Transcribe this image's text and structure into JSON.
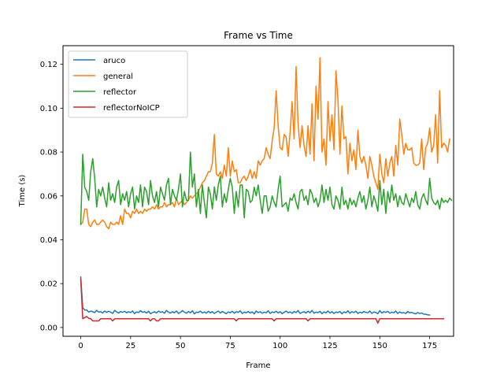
{
  "chart_data": {
    "type": "line",
    "title": "Frame vs Time",
    "xlabel": "Frame",
    "ylabel": "Time (s)",
    "xlim": [
      -8.9,
      187
    ],
    "ylim": [
      -0.004,
      0.1285
    ],
    "xticks": [
      0,
      25,
      50,
      75,
      100,
      125,
      150,
      175
    ],
    "yticks": [
      0.0,
      0.02,
      0.04,
      0.06,
      0.08,
      0.1,
      0.12
    ],
    "ytick_labels": [
      "0.00",
      "0.02",
      "0.04",
      "0.06",
      "0.08",
      "0.10",
      "0.12"
    ],
    "grid": false,
    "legend_position": "top-left",
    "series": [
      {
        "name": "aruco",
        "color": "#1f77b4",
        "x_start": 0,
        "values": [
          0.023,
          0.009,
          0.008,
          0.008,
          0.007,
          0.0075,
          0.0072,
          0.0068,
          0.0078,
          0.007,
          0.0072,
          0.0066,
          0.0075,
          0.0069,
          0.0074,
          0.007,
          0.0064,
          0.0078,
          0.0071,
          0.0066,
          0.0073,
          0.0069,
          0.0074,
          0.0067,
          0.0072,
          0.0068,
          0.0075,
          0.0063,
          0.0071,
          0.0068,
          0.0077,
          0.0069,
          0.0072,
          0.0066,
          0.0074,
          0.0063,
          0.0068,
          0.0072,
          0.0066,
          0.0075,
          0.0069,
          0.0072,
          0.0065,
          0.0078,
          0.007,
          0.0066,
          0.0072,
          0.0067,
          0.0075,
          0.0064,
          0.0069,
          0.0077,
          0.007,
          0.0065,
          0.0073,
          0.0067,
          0.0076,
          0.0062,
          0.007,
          0.0068,
          0.0075,
          0.0066,
          0.0071,
          0.0065,
          0.0074,
          0.0067,
          0.0072,
          0.0064,
          0.007,
          0.0075,
          0.0066,
          0.0073,
          0.0068,
          0.0063,
          0.0071,
          0.0067,
          0.0074,
          0.0065,
          0.0072,
          0.0069,
          0.0076,
          0.0064,
          0.007,
          0.0067,
          0.0073,
          0.0066,
          0.0071,
          0.0062,
          0.0075,
          0.0068,
          0.0072,
          0.0065,
          0.007,
          0.0067,
          0.0076,
          0.0064,
          0.0071,
          0.0068,
          0.0074,
          0.0066,
          0.0072,
          0.0063,
          0.0069,
          0.0075,
          0.0067,
          0.0071,
          0.0065,
          0.0073,
          0.0068,
          0.0077,
          0.0064,
          0.0069,
          0.0072,
          0.0066,
          0.0074,
          0.0067,
          0.0078,
          0.0065,
          0.007,
          0.0068,
          0.0074,
          0.0063,
          0.0071,
          0.0067,
          0.0075,
          0.0066,
          0.0072,
          0.0064,
          0.007,
          0.0068,
          0.0073,
          0.0062,
          0.0071,
          0.0067,
          0.0076,
          0.0065,
          0.0072,
          0.0068,
          0.0074,
          0.0064,
          0.007,
          0.0066,
          0.0073,
          0.0069,
          0.0067,
          0.0075,
          0.0064,
          0.0071,
          0.0068,
          0.0063,
          0.0077,
          0.0066,
          0.0072,
          0.0069,
          0.0074,
          0.0065,
          0.007,
          0.0067,
          0.0075,
          0.0064,
          0.0071,
          0.0066,
          0.0068,
          0.0064,
          0.0073,
          0.0067,
          0.0069,
          0.0065,
          0.0062,
          0.0068,
          0.0064,
          0.0066,
          0.0061,
          0.006,
          0.0058,
          0.0057
        ]
      },
      {
        "name": "general",
        "color": "#ff7f0e",
        "x_start": 0,
        "values": [
          0.047,
          0.048,
          0.054,
          0.054,
          0.047,
          0.046,
          0.048,
          0.049,
          0.047,
          0.047,
          0.048,
          0.049,
          0.048,
          0.046,
          0.045,
          0.048,
          0.047,
          0.047,
          0.048,
          0.047,
          0.051,
          0.047,
          0.054,
          0.052,
          0.052,
          0.05,
          0.053,
          0.052,
          0.054,
          0.052,
          0.053,
          0.052,
          0.054,
          0.053,
          0.054,
          0.054,
          0.055,
          0.054,
          0.056,
          0.054,
          0.055,
          0.055,
          0.057,
          0.055,
          0.056,
          0.056,
          0.057,
          0.055,
          0.059,
          0.056,
          0.057,
          0.058,
          0.056,
          0.057,
          0.058,
          0.06,
          0.059,
          0.06,
          0.061,
          0.062,
          0.064,
          0.066,
          0.067,
          0.069,
          0.071,
          0.071,
          0.075,
          0.088,
          0.07,
          0.069,
          0.071,
          0.068,
          0.074,
          0.069,
          0.082,
          0.069,
          0.076,
          0.071,
          0.072,
          0.066,
          0.066,
          0.068,
          0.069,
          0.067,
          0.069,
          0.072,
          0.068,
          0.071,
          0.068,
          0.076,
          0.074,
          0.076,
          0.077,
          0.082,
          0.079,
          0.077,
          0.085,
          0.091,
          0.108,
          0.092,
          0.082,
          0.081,
          0.088,
          0.087,
          0.078,
          0.089,
          0.103,
          0.086,
          0.119,
          0.093,
          0.082,
          0.092,
          0.083,
          0.078,
          0.092,
          0.079,
          0.102,
          0.076,
          0.11,
          0.095,
          0.123,
          0.08,
          0.086,
          0.074,
          0.103,
          0.085,
          0.097,
          0.081,
          0.117,
          0.104,
          0.079,
          0.101,
          0.086,
          0.087,
          0.07,
          0.084,
          0.076,
          0.081,
          0.072,
          0.09,
          0.078,
          0.075,
          0.078,
          0.074,
          0.068,
          0.078,
          0.074,
          0.069,
          0.066,
          0.063,
          0.079,
          0.07,
          0.066,
          0.077,
          0.069,
          0.075,
          0.078,
          0.069,
          0.083,
          0.074,
          0.095,
          0.088,
          0.079,
          0.084,
          0.081,
          0.081,
          0.082,
          0.075,
          0.074,
          0.074,
          0.075,
          0.086,
          0.072,
          0.082,
          0.084,
          0.091,
          0.08,
          0.083,
          0.097,
          0.075,
          0.108,
          0.082,
          0.084,
          0.083,
          0.08,
          0.086
        ]
      },
      {
        "name": "reflector",
        "color": "#2ca02c",
        "x_start": 0,
        "values": [
          0.047,
          0.079,
          0.064,
          0.062,
          0.058,
          0.071,
          0.077,
          0.068,
          0.055,
          0.063,
          0.06,
          0.064,
          0.059,
          0.055,
          0.066,
          0.058,
          0.061,
          0.057,
          0.064,
          0.067,
          0.056,
          0.061,
          0.058,
          0.062,
          0.055,
          0.061,
          0.064,
          0.054,
          0.06,
          0.057,
          0.065,
          0.055,
          0.064,
          0.062,
          0.056,
          0.067,
          0.06,
          0.057,
          0.062,
          0.055,
          0.064,
          0.061,
          0.058,
          0.065,
          0.068,
          0.056,
          0.063,
          0.06,
          0.058,
          0.063,
          0.07,
          0.055,
          0.062,
          0.058,
          0.058,
          0.08,
          0.064,
          0.07,
          0.055,
          0.063,
          0.052,
          0.065,
          0.057,
          0.05,
          0.064,
          0.061,
          0.054,
          0.064,
          0.058,
          0.065,
          0.069,
          0.055,
          0.061,
          0.057,
          0.063,
          0.068,
          0.064,
          0.052,
          0.062,
          0.055,
          0.065,
          0.065,
          0.05,
          0.063,
          0.062,
          0.057,
          0.058,
          0.064,
          0.06,
          0.065,
          0.058,
          0.052,
          0.06,
          0.06,
          0.053,
          0.055,
          0.06,
          0.057,
          0.055,
          0.063,
          0.069,
          0.055,
          0.056,
          0.057,
          0.053,
          0.059,
          0.058,
          0.061,
          0.057,
          0.054,
          0.062,
          0.063,
          0.058,
          0.06,
          0.056,
          0.063,
          0.061,
          0.057,
          0.059,
          0.055,
          0.058,
          0.065,
          0.057,
          0.063,
          0.058,
          0.064,
          0.056,
          0.054,
          0.06,
          0.058,
          0.054,
          0.064,
          0.056,
          0.058,
          0.054,
          0.059,
          0.056,
          0.058,
          0.055,
          0.059,
          0.062,
          0.057,
          0.06,
          0.054,
          0.058,
          0.064,
          0.055,
          0.06,
          0.057,
          0.053,
          0.067,
          0.056,
          0.063,
          0.052,
          0.062,
          0.057,
          0.065,
          0.058,
          0.061,
          0.055,
          0.06,
          0.057,
          0.056,
          0.061,
          0.058,
          0.055,
          0.059,
          0.057,
          0.062,
          0.056,
          0.054,
          0.059,
          0.061,
          0.058,
          0.056,
          0.068,
          0.059,
          0.057,
          0.056,
          0.058,
          0.054,
          0.059,
          0.057,
          0.058,
          0.057,
          0.059,
          0.058
        ]
      },
      {
        "name": "reflectorNoICP",
        "color": "#d62728",
        "x_start": 0,
        "values": [
          0.022,
          0.004,
          0.0045,
          0.005,
          0.0042,
          0.004,
          0.003,
          0.003,
          0.003,
          0.003,
          0.004,
          0.004,
          0.004,
          0.004,
          0.004,
          0.004,
          0.003,
          0.004,
          0.004,
          0.004,
          0.004,
          0.004,
          0.004,
          0.004,
          0.004,
          0.004,
          0.004,
          0.004,
          0.004,
          0.004,
          0.004,
          0.004,
          0.004,
          0.004,
          0.004,
          0.003,
          0.004,
          0.004,
          0.003,
          0.003,
          0.004,
          0.004,
          0.004,
          0.004,
          0.004,
          0.004,
          0.004,
          0.004,
          0.004,
          0.004,
          0.004,
          0.004,
          0.004,
          0.004,
          0.004,
          0.004,
          0.004,
          0.004,
          0.004,
          0.004,
          0.004,
          0.004,
          0.004,
          0.004,
          0.004,
          0.004,
          0.004,
          0.004,
          0.004,
          0.004,
          0.004,
          0.004,
          0.004,
          0.004,
          0.004,
          0.004,
          0.004,
          0.004,
          0.003,
          0.004,
          0.004,
          0.004,
          0.004,
          0.004,
          0.004,
          0.004,
          0.004,
          0.004,
          0.004,
          0.004,
          0.004,
          0.004,
          0.004,
          0.004,
          0.004,
          0.004,
          0.004,
          0.003,
          0.004,
          0.004,
          0.004,
          0.004,
          0.004,
          0.004,
          0.004,
          0.004,
          0.004,
          0.004,
          0.004,
          0.004,
          0.004,
          0.004,
          0.004,
          0.004,
          0.003,
          0.004,
          0.004,
          0.004,
          0.004,
          0.004,
          0.004,
          0.004,
          0.004,
          0.004,
          0.004,
          0.004,
          0.004,
          0.004,
          0.004,
          0.004,
          0.004,
          0.004,
          0.004,
          0.004,
          0.004,
          0.004,
          0.004,
          0.004,
          0.004,
          0.004,
          0.004,
          0.004,
          0.004,
          0.004,
          0.004,
          0.004,
          0.004,
          0.004,
          0.004,
          0.002,
          0.004,
          0.004,
          0.004,
          0.004,
          0.004,
          0.004,
          0.004,
          0.004,
          0.004,
          0.004,
          0.004,
          0.004,
          0.004,
          0.004,
          0.004,
          0.004,
          0.004,
          0.004,
          0.004,
          0.004,
          0.004,
          0.004,
          0.004,
          0.004,
          0.004,
          0.004,
          0.004,
          0.004,
          0.004,
          0.004,
          0.004,
          0.004,
          0.004
        ]
      }
    ]
  }
}
